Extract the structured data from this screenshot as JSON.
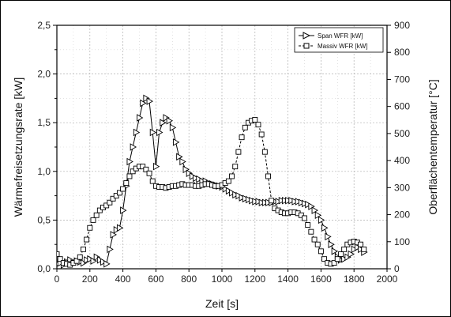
{
  "chart_data": {
    "type": "line",
    "xlabel": "Zeit [s]",
    "ylabel": "Wärmefreisetzungsrate [kW]",
    "y2label": "Oberflächentemperatur [°C]",
    "xlim": [
      0,
      2000
    ],
    "ylim": [
      0,
      2.5
    ],
    "y2lim": [
      0,
      900
    ],
    "xticks": [
      "0",
      "200",
      "400",
      "600",
      "800",
      "1000",
      "1200",
      "1400",
      "1600",
      "1800",
      "2000"
    ],
    "yticks": [
      "0,0",
      "0,5",
      "1,0",
      "1,5",
      "2,0",
      "2,5"
    ],
    "y2ticks": [
      "0",
      "100",
      "200",
      "300",
      "400",
      "500",
      "600",
      "700",
      "800",
      "900"
    ],
    "grid": true,
    "legend_position": "top-right",
    "series": [
      {
        "name": "Span WFR [kW]",
        "marker": "triangle-right",
        "color": "#000000",
        "x": [
          0,
          20,
          40,
          60,
          80,
          100,
          120,
          140,
          160,
          180,
          200,
          220,
          240,
          260,
          280,
          300,
          320,
          340,
          360,
          380,
          400,
          420,
          440,
          460,
          480,
          500,
          520,
          540,
          560,
          580,
          600,
          620,
          640,
          660,
          680,
          700,
          720,
          740,
          760,
          780,
          800,
          820,
          840,
          860,
          880,
          900,
          920,
          940,
          960,
          980,
          1000,
          1020,
          1040,
          1060,
          1080,
          1100,
          1120,
          1140,
          1160,
          1180,
          1200,
          1220,
          1240,
          1260,
          1280,
          1300,
          1320,
          1340,
          1360,
          1380,
          1400,
          1420,
          1440,
          1460,
          1480,
          1500,
          1520,
          1540,
          1560,
          1580,
          1600,
          1620,
          1640,
          1660,
          1680,
          1700,
          1720,
          1740,
          1760,
          1780,
          1800,
          1820,
          1840,
          1860
        ],
        "values": [
          0.05,
          0.06,
          0.04,
          0.07,
          0.09,
          0.06,
          0.08,
          0.07,
          0.06,
          0.09,
          0.1,
          0.08,
          0.12,
          0.09,
          0.07,
          0.05,
          0.2,
          0.35,
          0.4,
          0.42,
          0.6,
          0.85,
          1.1,
          1.25,
          1.4,
          1.55,
          1.7,
          1.75,
          1.72,
          1.4,
          1.05,
          1.4,
          1.5,
          1.55,
          1.52,
          1.45,
          1.3,
          1.15,
          1.1,
          1.02,
          0.98,
          0.95,
          0.93,
          0.92,
          0.9,
          0.9,
          0.88,
          0.87,
          0.86,
          0.85,
          0.84,
          0.82,
          0.8,
          0.78,
          0.76,
          0.75,
          0.73,
          0.72,
          0.71,
          0.7,
          0.69,
          0.69,
          0.68,
          0.68,
          0.68,
          0.68,
          0.69,
          0.69,
          0.7,
          0.7,
          0.7,
          0.7,
          0.69,
          0.69,
          0.68,
          0.67,
          0.66,
          0.64,
          0.6,
          0.55,
          0.5,
          0.42,
          0.33,
          0.25,
          0.18,
          0.12,
          0.09,
          0.1,
          0.12,
          0.15,
          0.2,
          0.22,
          0.2,
          0.17
        ]
      },
      {
        "name": "Massiv WFR [kW]",
        "marker": "square",
        "color": "#000000",
        "x": [
          0,
          20,
          40,
          60,
          80,
          100,
          120,
          140,
          160,
          180,
          200,
          220,
          240,
          260,
          280,
          300,
          320,
          340,
          360,
          380,
          400,
          420,
          440,
          460,
          480,
          500,
          520,
          540,
          560,
          580,
          600,
          620,
          640,
          660,
          680,
          700,
          720,
          740,
          760,
          780,
          800,
          820,
          840,
          860,
          880,
          900,
          920,
          940,
          960,
          980,
          1000,
          1020,
          1040,
          1060,
          1080,
          1100,
          1120,
          1140,
          1160,
          1180,
          1200,
          1220,
          1240,
          1260,
          1280,
          1300,
          1320,
          1340,
          1360,
          1380,
          1400,
          1420,
          1440,
          1460,
          1480,
          1500,
          1520,
          1540,
          1560,
          1580,
          1600,
          1620,
          1640,
          1660,
          1680,
          1700,
          1720,
          1740,
          1760,
          1780,
          1800,
          1820,
          1840,
          1860
        ],
        "values": [
          0.15,
          0.1,
          0.06,
          0.05,
          0.04,
          0.06,
          0.08,
          0.12,
          0.2,
          0.3,
          0.42,
          0.5,
          0.55,
          0.6,
          0.63,
          0.65,
          0.68,
          0.72,
          0.75,
          0.78,
          0.82,
          0.88,
          0.95,
          1.0,
          1.03,
          1.05,
          1.05,
          1.02,
          0.98,
          0.9,
          0.85,
          0.84,
          0.84,
          0.83,
          0.84,
          0.85,
          0.85,
          0.86,
          0.87,
          0.86,
          0.86,
          0.86,
          0.85,
          0.85,
          0.86,
          0.87,
          0.87,
          0.86,
          0.85,
          0.85,
          0.86,
          0.88,
          0.9,
          0.95,
          1.05,
          1.2,
          1.35,
          1.45,
          1.5,
          1.52,
          1.53,
          1.48,
          1.38,
          1.2,
          0.95,
          0.7,
          0.62,
          0.6,
          0.58,
          0.57,
          0.57,
          0.58,
          0.58,
          0.57,
          0.55,
          0.52,
          0.45,
          0.38,
          0.3,
          0.25,
          0.18,
          0.1,
          0.06,
          0.05,
          0.06,
          0.1,
          0.15,
          0.2,
          0.25,
          0.27,
          0.28,
          0.27,
          0.25,
          0.2
        ]
      }
    ]
  }
}
